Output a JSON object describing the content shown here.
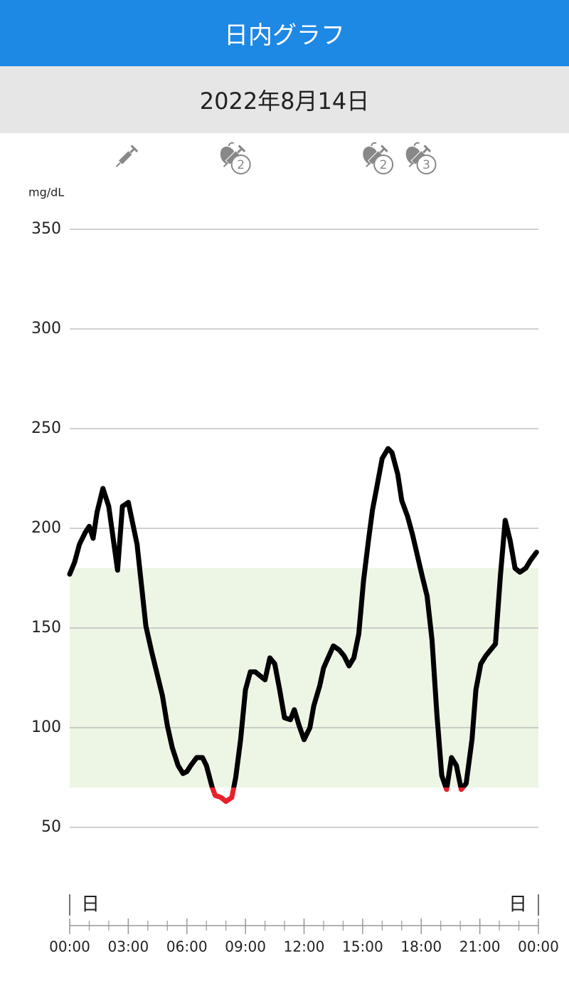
{
  "header": {
    "title": "日内グラフ",
    "date": "2022年8月14日"
  },
  "chart_data": {
    "type": "line",
    "y_label": "mg/dL",
    "x": [
      0,
      0.25,
      0.5,
      0.8,
      1.0,
      1.2,
      1.4,
      1.7,
      2.0,
      2.45,
      2.7,
      3.0,
      3.45,
      3.9,
      4.2,
      4.75,
      5.0,
      5.25,
      5.55,
      5.8,
      6.0,
      6.2,
      6.5,
      6.8,
      7.0,
      7.3,
      7.45,
      7.75,
      8.0,
      8.3,
      8.5,
      8.75,
      9.0,
      9.25,
      9.5,
      9.75,
      10.0,
      10.25,
      10.5,
      10.75,
      11.0,
      11.3,
      11.5,
      11.75,
      12.0,
      12.3,
      12.5,
      12.8,
      13.0,
      13.5,
      13.8,
      14.05,
      14.3,
      14.55,
      14.8,
      15.05,
      15.3,
      15.5,
      15.75,
      16.0,
      16.3,
      16.5,
      16.8,
      17.0,
      17.3,
      17.55,
      18.05,
      18.3,
      18.55,
      18.8,
      19.05,
      19.3,
      19.55,
      19.8,
      20.05,
      20.3,
      20.6,
      20.8,
      21.05,
      21.3,
      21.55,
      21.8,
      22.05,
      22.3,
      22.55,
      22.8,
      23.05,
      23.35,
      23.6,
      23.9
    ],
    "values": [
      177,
      183,
      192,
      198,
      201,
      195,
      208,
      220,
      211,
      179,
      211,
      213,
      192,
      151,
      138,
      116,
      101,
      90,
      81,
      77,
      78,
      81,
      85,
      85,
      81,
      70,
      66,
      65,
      63,
      65,
      75,
      94,
      119,
      128,
      128,
      126,
      124,
      135,
      132,
      119,
      105,
      104,
      109,
      101,
      94,
      100,
      111,
      121,
      130,
      141,
      139,
      136,
      131,
      135,
      147,
      174,
      194,
      209,
      222,
      235,
      240,
      238,
      227,
      214,
      206,
      197,
      176,
      166,
      144,
      107,
      76,
      69,
      85,
      81,
      69,
      72,
      94,
      119,
      132,
      136,
      139,
      142,
      176,
      204,
      194,
      180,
      178,
      180,
      184,
      188
    ],
    "color": "#000000",
    "low_color": "#e8202a",
    "low_threshold": 70,
    "target_range": [
      70,
      180
    ],
    "target_color": "#edf5e5",
    "xlim": [
      0,
      24
    ],
    "xticks": [
      {
        "value": 0,
        "label": "00:00"
      },
      {
        "value": 3,
        "label": "03:00"
      },
      {
        "value": 6,
        "label": "06:00"
      },
      {
        "value": 9,
        "label": "09:00"
      },
      {
        "value": 12,
        "label": "12:00"
      },
      {
        "value": 15,
        "label": "15:00"
      },
      {
        "value": 18,
        "label": "18:00"
      },
      {
        "value": 21,
        "label": "21:00"
      },
      {
        "value": 24,
        "label": "00:00"
      }
    ],
    "xminorticks": [
      0,
      1,
      2,
      3,
      4,
      5,
      6,
      7,
      8,
      9,
      10,
      11,
      12,
      13,
      14,
      15,
      16,
      17,
      18,
      19,
      20,
      21,
      22,
      23,
      24
    ],
    "ylim": [
      50,
      350
    ],
    "yticks": [
      50,
      100,
      150,
      200,
      250,
      300,
      350
    ],
    "grid": true,
    "day_markers": [
      {
        "x": 0,
        "label": "日"
      },
      {
        "x": 24,
        "label": "日"
      }
    ],
    "events": [
      {
        "x": 2.9
      },
      {
        "x": 8.4,
        "label": "2"
      },
      {
        "x": 15.7,
        "label": "2"
      },
      {
        "x": 17.9,
        "label": "3"
      }
    ]
  }
}
